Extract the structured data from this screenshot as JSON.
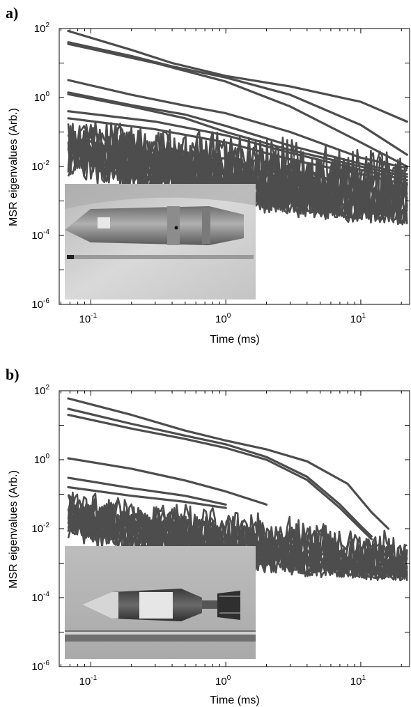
{
  "chart_data": [
    {
      "type": "line",
      "panel_label": "a)",
      "xlabel": "Time (ms)",
      "ylabel": "MSR eigenvalues (Arb.)",
      "xscale": "log",
      "yscale": "log",
      "xlim": [
        0.0583,
        23
      ],
      "ylim": [
        1e-06,
        100
      ],
      "xticks": [
        {
          "value": 0.1,
          "base": "10",
          "exp": "-1"
        },
        {
          "value": 1,
          "base": "10",
          "exp": "0"
        },
        {
          "value": 10,
          "base": "10",
          "exp": "1"
        }
      ],
      "yticks": [
        {
          "value": 100,
          "base": "10",
          "exp": "2"
        },
        {
          "value": 1,
          "base": "10",
          "exp": "0"
        },
        {
          "value": 0.01,
          "base": "10",
          "exp": "-2"
        },
        {
          "value": 0.0001,
          "base": "10",
          "exp": "-4"
        },
        {
          "value": 1e-06,
          "base": "10",
          "exp": "-6"
        }
      ],
      "line_color": "#4d4d4d",
      "inset": "photo-projectile",
      "series": [
        {
          "x": [
            0.068,
            0.2,
            0.4,
            1,
            3,
            10,
            22
          ],
          "y": [
            85,
            24,
            10,
            4.2,
            2.1,
            0.75,
            0.2
          ]
        },
        {
          "x": [
            0.068,
            0.2,
            0.4,
            1,
            3,
            10,
            22
          ],
          "y": [
            40,
            16,
            8,
            3.8,
            1.2,
            0.16,
            0.022
          ]
        },
        {
          "x": [
            0.068,
            0.3,
            1,
            3,
            10,
            22
          ],
          "y": [
            36,
            10,
            2.9,
            0.55,
            0.05,
            0.01
          ]
        },
        {
          "x": [
            0.068,
            0.2,
            0.5,
            1,
            3,
            10,
            22
          ],
          "y": [
            3.2,
            1.2,
            0.58,
            0.35,
            0.1,
            0.018,
            0.009
          ]
        },
        {
          "x": [
            0.068,
            0.2,
            0.5,
            1,
            3,
            10,
            22
          ],
          "y": [
            1.4,
            0.6,
            0.32,
            0.15,
            0.04,
            0.012,
            0.006
          ]
        },
        {
          "x": [
            0.068,
            0.2,
            0.5,
            1,
            3,
            10,
            22
          ],
          "y": [
            1.25,
            0.55,
            0.25,
            0.1,
            0.03,
            0.01,
            0.005
          ]
        },
        {
          "x": [
            0.068,
            0.3,
            1,
            3,
            10,
            22
          ],
          "y": [
            0.4,
            0.2,
            0.08,
            0.025,
            0.008,
            0.004
          ]
        },
        {
          "x": [
            0.068,
            0.3,
            1,
            3,
            10,
            22
          ],
          "y": [
            0.25,
            0.12,
            0.05,
            0.016,
            0.006,
            0.003
          ]
        }
      ],
      "noise_band": {
        "count": 14,
        "x_start": 0.068,
        "x_end": 22,
        "y_top_start": 0.3,
        "y_top_end": 0.03,
        "y_floor": 0.0002
      }
    },
    {
      "type": "line",
      "panel_label": "b)",
      "xlabel": "Time (ms)",
      "ylabel": "MSR eigenvalues (Arb.)",
      "xscale": "log",
      "yscale": "log",
      "xlim": [
        0.0583,
        23
      ],
      "ylim": [
        1e-06,
        100
      ],
      "xticks": [
        {
          "value": 0.1,
          "base": "10",
          "exp": "-1"
        },
        {
          "value": 1,
          "base": "10",
          "exp": "0"
        },
        {
          "value": 10,
          "base": "10",
          "exp": "1"
        }
      ],
      "yticks": [
        {
          "value": 100,
          "base": "10",
          "exp": "2"
        },
        {
          "value": 1,
          "base": "10",
          "exp": "0"
        },
        {
          "value": 0.01,
          "base": "10",
          "exp": "-2"
        },
        {
          "value": 0.0001,
          "base": "10",
          "exp": "-4"
        },
        {
          "value": 1e-06,
          "base": "10",
          "exp": "-6"
        }
      ],
      "line_color": "#4d4d4d",
      "inset": "photo-mortar",
      "series": [
        {
          "x": [
            0.068,
            0.2,
            0.5,
            1,
            2,
            4,
            8,
            12,
            16
          ],
          "y": [
            60,
            20,
            7,
            3.6,
            2,
            0.9,
            0.2,
            0.03,
            0.01
          ]
        },
        {
          "x": [
            0.068,
            0.2,
            0.5,
            1,
            2,
            4,
            7,
            10,
            12
          ],
          "y": [
            30,
            11,
            5,
            2.8,
            1.2,
            0.32,
            0.05,
            0.012,
            0.006
          ]
        },
        {
          "x": [
            0.068,
            0.2,
            0.5,
            1,
            2,
            4,
            7,
            10,
            12
          ],
          "y": [
            20,
            8,
            4,
            2.2,
            1,
            0.26,
            0.04,
            0.01,
            0.005
          ]
        },
        {
          "x": [
            0.068,
            0.2,
            0.5,
            1,
            2
          ],
          "y": [
            1.1,
            0.55,
            0.25,
            0.12,
            0.05
          ]
        },
        {
          "x": [
            0.068,
            0.2,
            0.5,
            1
          ],
          "y": [
            0.3,
            0.15,
            0.09,
            0.05
          ]
        },
        {
          "x": [
            0.068,
            0.2,
            0.5,
            1
          ],
          "y": [
            0.16,
            0.09,
            0.06,
            0.04
          ]
        }
      ],
      "noise_band": {
        "count": 14,
        "x_start": 0.068,
        "x_end": 22,
        "y_top_start": 0.15,
        "y_top_end": 0.008,
        "y_floor": 0.0003
      }
    }
  ]
}
